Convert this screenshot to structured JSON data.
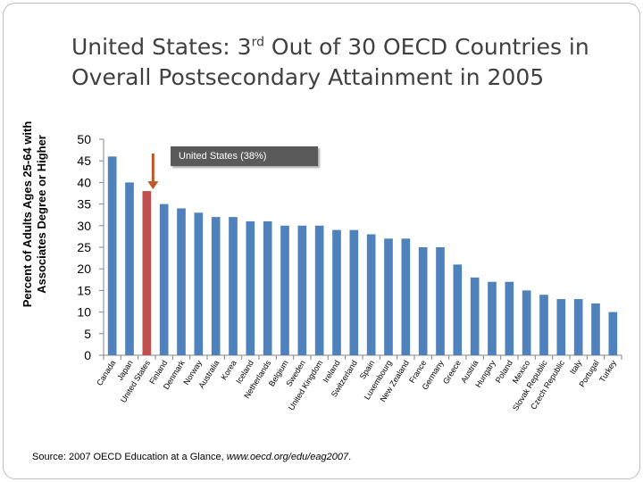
{
  "title": {
    "line1_pre": "United States: 3",
    "line1_sup": "rd",
    "line1_post": " Out of 30 OECD Countries in",
    "line2": "Overall Postsecondary Attainment in 2005"
  },
  "source": {
    "prefix": "Source:  2007 OECD Education at a Glance, ",
    "url": "www.oecd.org/edu/eag2007",
    "suffix": "."
  },
  "callout": {
    "label": "United States (38%)",
    "arrow_color": "#c0582a"
  },
  "colors": {
    "bar": "#4f81bd",
    "highlight": "#c0504d",
    "arrow": "#c0582a",
    "callout_bg": "#5a5a5a"
  },
  "chart_data": {
    "type": "bar",
    "title": "United States: 3rd Out of 30 OECD Countries in Overall Postsecondary Attainment in 2005",
    "xlabel": "",
    "ylabel": "Percent of Adults Ages 25-64 with Associates Degree or Higher",
    "ylabel_lines": [
      "Percent of Adults Ages 25-64 with",
      "Associates Degree or Higher"
    ],
    "ylim": [
      0,
      50
    ],
    "yticks": [
      0,
      5,
      10,
      15,
      20,
      25,
      30,
      35,
      40,
      45,
      50
    ],
    "highlight_category": "United States",
    "categories": [
      "Canada",
      "Japan",
      "United States",
      "Finland",
      "Denmark",
      "Norway",
      "Australia",
      "Korea",
      "Iceland",
      "Netherlands",
      "Belgium",
      "Sweden",
      "United Kingdom",
      "Ireland",
      "Switzerland",
      "Spain",
      "Luxembourg",
      "New Zealand",
      "France",
      "Germany",
      "Greece",
      "Austria",
      "Hungary",
      "Poland",
      "Mexico",
      "Slovak Republic",
      "Czech Republic",
      "Italy",
      "Portugal",
      "Turkey"
    ],
    "values": [
      46,
      40,
      38,
      35,
      34,
      33,
      32,
      32,
      31,
      31,
      30,
      30,
      30,
      29,
      29,
      28,
      27,
      27,
      25,
      25,
      21,
      18,
      17,
      17,
      15,
      14,
      13,
      13,
      12,
      10
    ]
  }
}
